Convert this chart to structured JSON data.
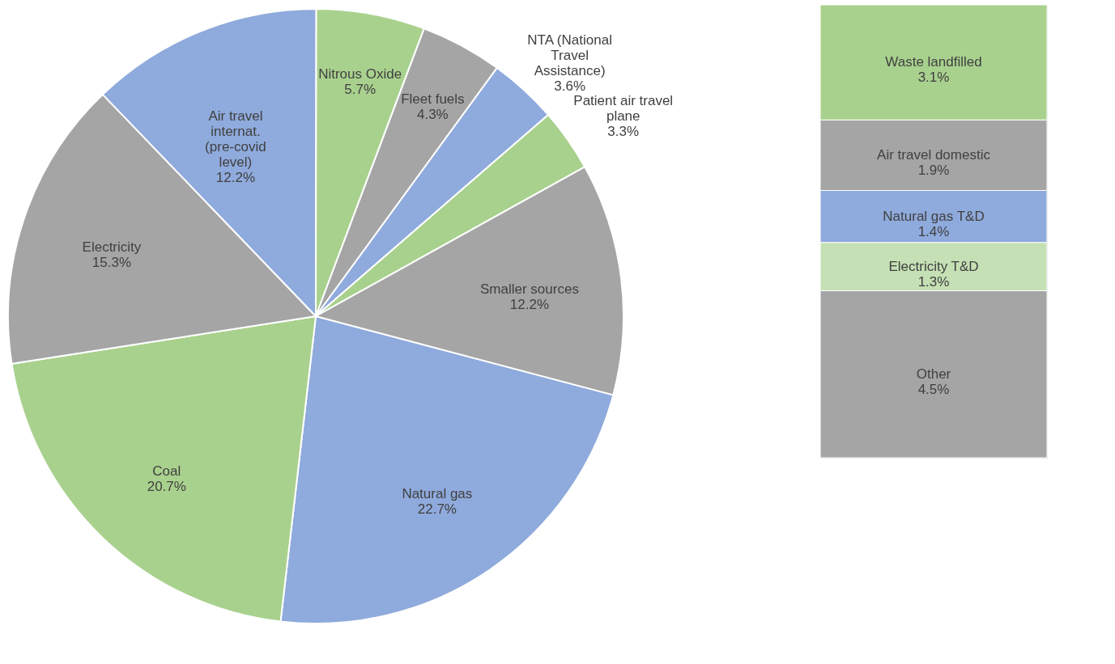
{
  "chart_data": [
    {
      "type": "pie",
      "categories": [
        "Natural gas",
        "Coal",
        "Electricity",
        "Air travel\ninternat.\n(pre-covid\nlevel)",
        "Nitrous Oxide",
        "Fleet fuels",
        "NTA (National\nTravel\nAssistance)",
        "Patient air travel\nplane",
        "Smaller sources"
      ],
      "values": [
        22.7,
        20.7,
        15.3,
        12.2,
        5.7,
        4.3,
        3.6,
        3.3,
        12.2
      ],
      "value_labels": [
        "22.7%",
        "20.7%",
        "15.3%",
        "12.2%",
        "5.7%",
        "4.3%",
        "3.6%",
        "3.3%",
        "12.2%"
      ],
      "colors": [
        "#8faadc",
        "#a9d18e",
        "#a5a5a5",
        "#8faadc",
        "#a9d18e",
        "#a5a5a5",
        "#8faadc",
        "#a9d18e",
        "#a5a5a5"
      ]
    },
    {
      "type": "bar",
      "stacked": true,
      "categories": [
        null
      ],
      "tick_labels": false,
      "series": [
        {
          "name": "Other",
          "color": "#a5a5a5",
          "values": [
            4.5
          ],
          "value_labels": [
            "4.5%"
          ]
        },
        {
          "name": "Electricity T&D",
          "color": "#c5e0b4",
          "values": [
            1.3
          ],
          "value_labels": [
            "1.3%"
          ]
        },
        {
          "name": "Natural gas T&D",
          "color": "#8faadc",
          "values": [
            1.4
          ],
          "value_labels": [
            "1.4%"
          ]
        },
        {
          "name": "Air travel domestic",
          "color": "#a5a5a5",
          "values": [
            1.9
          ],
          "value_labels": [
            "1.9%"
          ]
        },
        {
          "name": "Waste landfilled",
          "color": "#a9d18e",
          "values": [
            3.1
          ],
          "value_labels": [
            "3.1%"
          ]
        }
      ]
    }
  ]
}
